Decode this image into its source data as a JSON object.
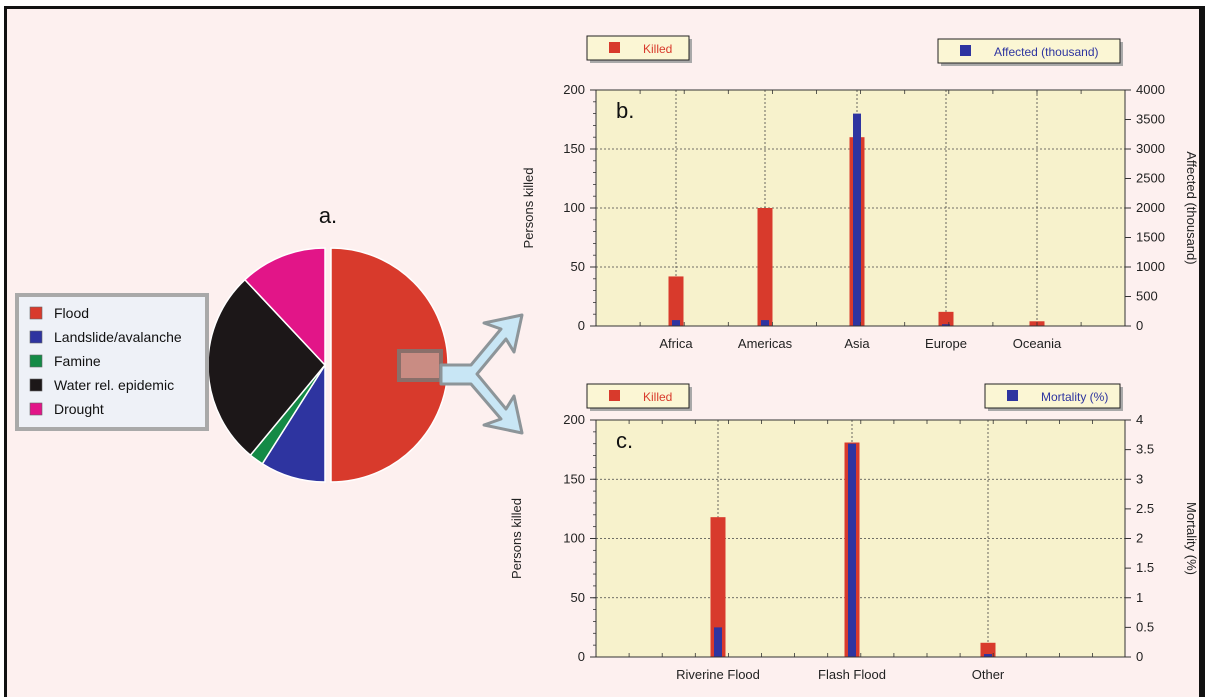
{
  "chart_data": [
    {
      "type": "pie",
      "title": "a.",
      "slices": [
        {
          "label": "Flood",
          "value": 50,
          "color": "#d83a2c"
        },
        {
          "label": "Landslide/avalanche",
          "value": 9,
          "color": "#2e34a0"
        },
        {
          "label": "Famine",
          "value": 2,
          "color": "#148a46"
        },
        {
          "label": "Water rel. epidemic",
          "value": 27,
          "color": "#1c1718"
        },
        {
          "label": "Drought",
          "value": 12,
          "color": "#e21588"
        }
      ]
    },
    {
      "type": "bar",
      "title": "b.",
      "categories": [
        "Africa",
        "Americas",
        "Asia",
        "Europe",
        "Oceania"
      ],
      "series": [
        {
          "name": "Killed",
          "axis": "left",
          "color": "#d83a2c",
          "values": [
            42,
            100,
            160,
            12,
            4
          ]
        },
        {
          "name": "Affected (thousand)",
          "axis": "right",
          "color": "#2e34a0",
          "values": [
            100,
            100,
            3600,
            30,
            0
          ]
        }
      ],
      "ylabel": "Persons killed",
      "ylim": [
        0,
        200
      ],
      "yticks": [
        "0",
        "50",
        "100",
        "150",
        "200"
      ],
      "y2label": "Affected (thousand)",
      "y2lim": [
        0,
        4000
      ],
      "y2ticks": [
        "0",
        "500",
        "1000",
        "1500",
        "2000",
        "2500",
        "3000",
        "3500",
        "4000"
      ],
      "grid": true
    },
    {
      "type": "bar",
      "title": "c.",
      "categories": [
        "Riverine Flood",
        "Flash Flood",
        "Other"
      ],
      "series": [
        {
          "name": "Killed",
          "axis": "left",
          "color": "#d83a2c",
          "values": [
            118,
            181,
            12
          ]
        },
        {
          "name": "Mortality (%)",
          "axis": "right",
          "color": "#2e34a0",
          "values": [
            0.5,
            3.6,
            0.05
          ]
        }
      ],
      "ylabel": "Persons killed",
      "ylim": [
        0,
        200
      ],
      "yticks": [
        "0",
        "50",
        "100",
        "150",
        "200"
      ],
      "y2label": "Mortality (%)",
      "y2lim": [
        0,
        4
      ],
      "y2ticks": [
        "0",
        "0.5",
        "1",
        "1.5",
        "2",
        "2.5",
        "3",
        "3.5",
        "4"
      ],
      "grid": true
    }
  ],
  "colors": {
    "plot_bg": "#f7f2cc",
    "frame_bg": "#fdf0ef",
    "arrow": "#c8e6f5"
  }
}
